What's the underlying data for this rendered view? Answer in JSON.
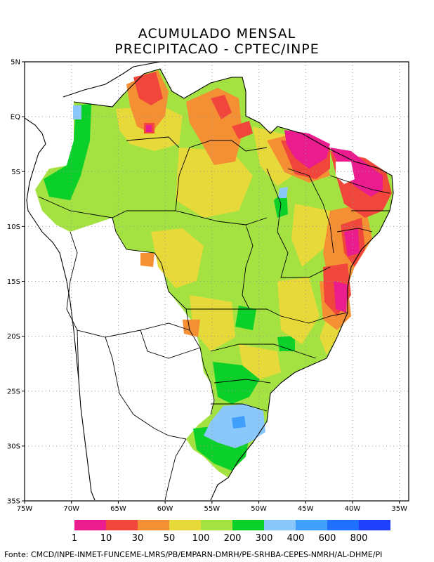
{
  "title": {
    "line1": "ACUMULADO MENSAL",
    "line2": "PRECIPITACAO - CPTEC/INPE"
  },
  "map": {
    "lat_ticks": [
      "5N",
      "EQ",
      "5S",
      "10S",
      "15S",
      "20S",
      "25S",
      "30S",
      "35S"
    ],
    "lon_ticks": [
      "75W",
      "70W",
      "65W",
      "60W",
      "55W",
      "50W",
      "45W",
      "40W",
      "35W"
    ],
    "lat_range": [
      -35,
      5
    ],
    "lon_range": [
      -75,
      -34
    ],
    "grid": true,
    "gridline_style": "dotted"
  },
  "legend": {
    "colors": [
      "#ea1c8e",
      "#f0463c",
      "#f58f33",
      "#e8d93b",
      "#a4e241",
      "#0bd02a",
      "#8ac7fb",
      "#40a0fc",
      "#1f70fc",
      "#1f3ffc"
    ],
    "labels": [
      "1",
      "10",
      "30",
      "50",
      "100",
      "200",
      "300",
      "400",
      "600",
      "800"
    ]
  },
  "source": "Fonte: CMCD/INPE-INMET-FUNCEME-LMRS/PB/EMPARN-DMRH/PE-SRHBA-CEPES-NMRH/AL-DHME/PI"
}
